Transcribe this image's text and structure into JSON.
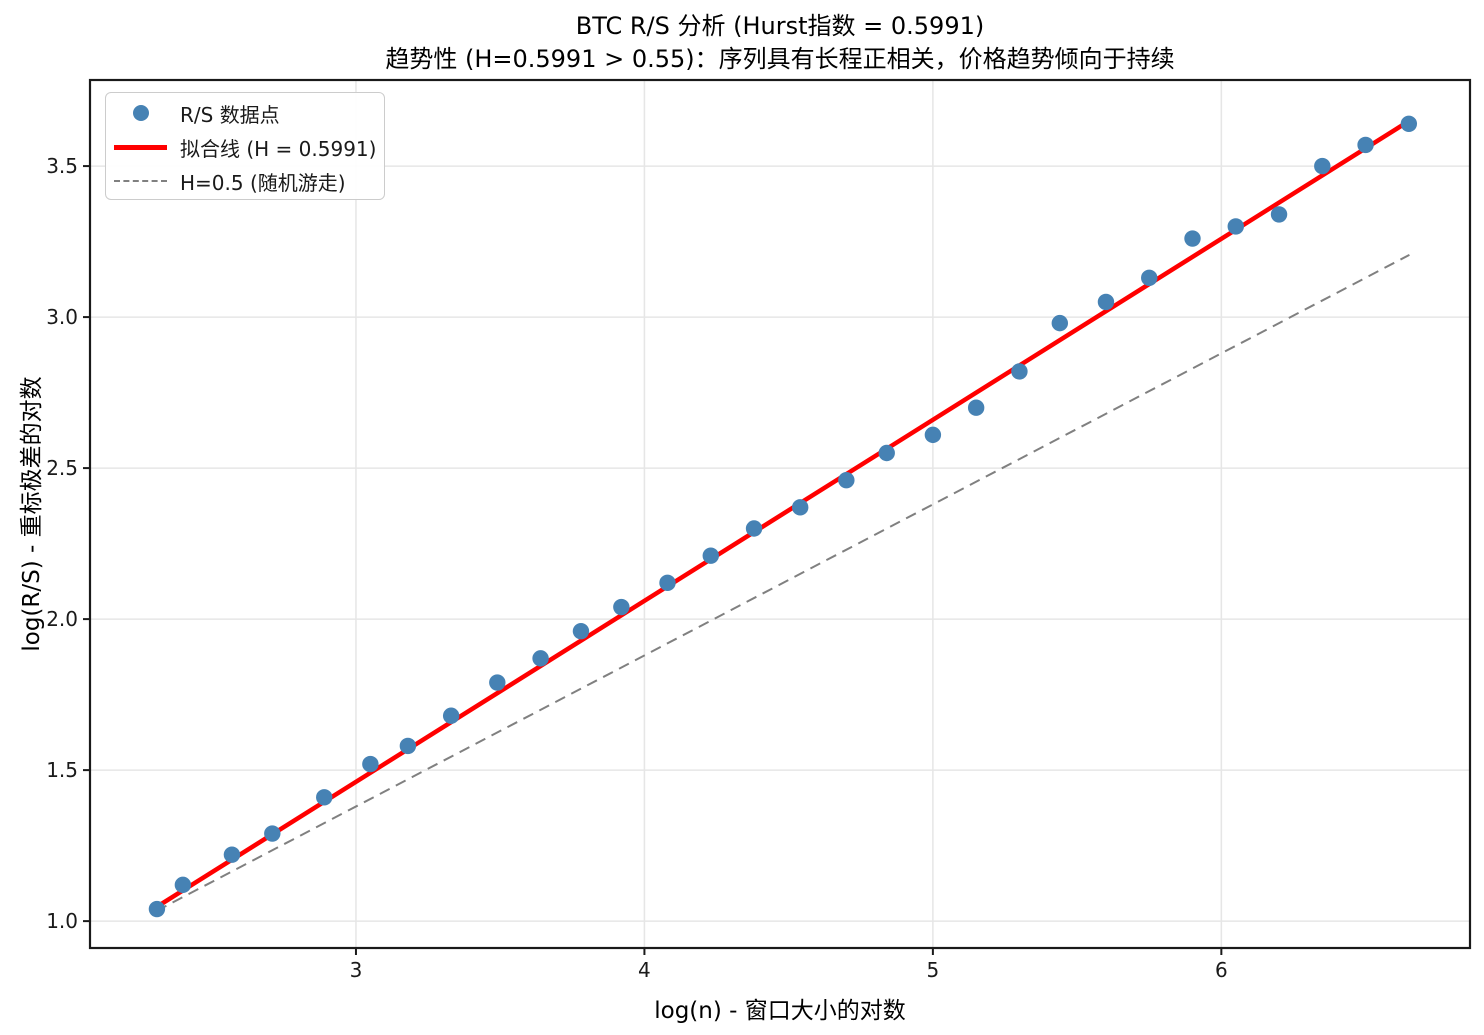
{
  "figure": {
    "kind": "matplotlib-style statistical plot",
    "background": "#ffffff"
  },
  "chart_data": {
    "type": "scatter",
    "title": "BTC R/S 分析 (Hurst指数 = 0.5991)",
    "subtitle": "趋势性 (H=0.5991 > 0.55)：序列具有长程正相关，价格趋势倾向于持续",
    "xlabel": "log(n) - 窗口大小的对数",
    "ylabel": "log(R/S) - 重标极差的对数",
    "hurst_exponent": 0.5991,
    "xlim": [
      2.078,
      6.862
    ],
    "ylim": [
      0.911,
      3.785
    ],
    "xticks": [
      3,
      4,
      5,
      6
    ],
    "xtick_labels": [
      "3",
      "4",
      "5",
      "6"
    ],
    "yticks": [
      1.0,
      1.5,
      2.0,
      2.5,
      3.0,
      3.5
    ],
    "ytick_labels": [
      "1.0",
      "1.5",
      "2.0",
      "2.5",
      "3.0",
      "3.5"
    ],
    "grid": true,
    "grid_color": "#e6e6e6",
    "spine_color": "#1a1a1a",
    "legend_position": "upper-left",
    "series": [
      {
        "name": "R/S 数据点",
        "kind": "scatter",
        "legend_marker": "dot",
        "color": "#4682B4",
        "marker_radius": 8.2,
        "x": [
          2.31,
          2.4,
          2.57,
          2.71,
          2.89,
          3.05,
          3.18,
          3.33,
          3.49,
          3.64,
          3.78,
          3.92,
          4.08,
          4.23,
          4.38,
          4.54,
          4.7,
          4.84,
          5.0,
          5.15,
          5.3,
          5.44,
          5.6,
          5.75,
          5.9,
          6.05,
          6.2,
          6.35,
          6.5,
          6.65
        ],
        "y": [
          1.04,
          1.12,
          1.22,
          1.29,
          1.41,
          1.52,
          1.58,
          1.68,
          1.79,
          1.87,
          1.96,
          2.04,
          2.12,
          2.21,
          2.3,
          2.37,
          2.46,
          2.55,
          2.61,
          2.7,
          2.82,
          2.98,
          3.05,
          3.13,
          3.26,
          3.3,
          3.34,
          3.5,
          3.57,
          3.64
        ]
      },
      {
        "name": "拟合线 (H = 0.5991)",
        "kind": "line",
        "legend_marker": "line",
        "color": "#ff0000",
        "line_width": 4.5,
        "x": [
          2.309,
          6.652
        ],
        "y": [
          1.047,
          3.65
        ]
      },
      {
        "name": "H=0.5 (随机游走)",
        "kind": "dashed-line",
        "legend_marker": "dash",
        "color": "#808080",
        "line_width": 2,
        "dash": [
          11,
          7
        ],
        "x": [
          2.309,
          6.652
        ],
        "y": [
          1.034,
          3.206
        ]
      }
    ]
  }
}
